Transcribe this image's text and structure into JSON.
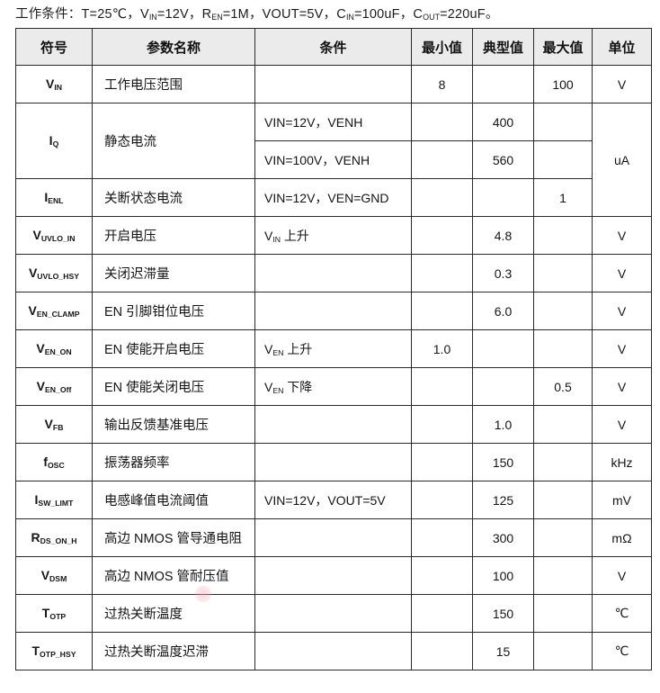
{
  "operating_conditions": {
    "segments": [
      [
        "工作条件：T=25℃，",
        0
      ],
      [
        "V",
        0
      ],
      [
        "IN",
        1
      ],
      [
        "=12V，",
        0
      ],
      [
        "R",
        0
      ],
      [
        "EN",
        1
      ],
      [
        "=1M，",
        0
      ],
      [
        "VOUT=5V，",
        0
      ],
      [
        "C",
        0
      ],
      [
        "IN",
        1
      ],
      [
        "=100uF，",
        0
      ],
      [
        "C",
        0
      ],
      [
        "OUT",
        1
      ],
      [
        "=220uF。",
        0
      ]
    ]
  },
  "table": {
    "headers": [
      "符号",
      "参数名称",
      "条件",
      "最小值",
      "典型值",
      "最大值",
      "单位"
    ],
    "rows": [
      {
        "cells": [
          {
            "seg": [
              [
                "V",
                0
              ],
              [
                "IN",
                1
              ]
            ]
          },
          {
            "t": "工作电压范围"
          },
          {
            "t": ""
          },
          {
            "t": "8"
          },
          {
            "t": ""
          },
          {
            "t": "100"
          },
          {
            "t": "V"
          }
        ]
      },
      {
        "cells": [
          {
            "seg": [
              [
                "I",
                0
              ],
              [
                "Q",
                1
              ]
            ],
            "rs": 2
          },
          {
            "t": "静态电流",
            "rs": 2
          },
          {
            "t": "VIN=12V，VENH"
          },
          {
            "t": ""
          },
          {
            "t": "400"
          },
          {
            "t": ""
          },
          {
            "t": "uA",
            "rs": 3
          }
        ]
      },
      {
        "cells": [
          {
            "t": "VIN=100V，VENH"
          },
          {
            "t": ""
          },
          {
            "t": "560"
          },
          {
            "t": ""
          }
        ]
      },
      {
        "cells": [
          {
            "seg": [
              [
                "I",
                0
              ],
              [
                "ENL",
                1
              ]
            ]
          },
          {
            "t": "关断状态电流"
          },
          {
            "t": "VIN=12V，VEN=GND"
          },
          {
            "t": ""
          },
          {
            "t": ""
          },
          {
            "t": "1"
          }
        ]
      },
      {
        "cells": [
          {
            "seg": [
              [
                "V",
                0
              ],
              [
                "UVLO_IN",
                1
              ]
            ]
          },
          {
            "t": "开启电压"
          },
          {
            "seg": [
              [
                "V",
                0
              ],
              [
                "IN",
                1
              ],
              [
                " 上升",
                0
              ]
            ]
          },
          {
            "t": ""
          },
          {
            "t": "4.8"
          },
          {
            "t": ""
          },
          {
            "t": "V"
          }
        ]
      },
      {
        "cells": [
          {
            "seg": [
              [
                "V",
                0
              ],
              [
                "UVLO_HSY",
                1
              ]
            ]
          },
          {
            "t": "关闭迟滞量"
          },
          {
            "t": ""
          },
          {
            "t": ""
          },
          {
            "t": "0.3"
          },
          {
            "t": ""
          },
          {
            "t": "V"
          }
        ]
      },
      {
        "cells": [
          {
            "seg": [
              [
                "V",
                0
              ],
              [
                "EN_CLAMP",
                1
              ]
            ]
          },
          {
            "t": "EN 引脚钳位电压"
          },
          {
            "t": ""
          },
          {
            "t": ""
          },
          {
            "t": "6.0"
          },
          {
            "t": ""
          },
          {
            "t": "V"
          }
        ]
      },
      {
        "cells": [
          {
            "seg": [
              [
                "V",
                0
              ],
              [
                "EN_ON",
                1
              ]
            ]
          },
          {
            "t": "EN 使能开启电压"
          },
          {
            "seg": [
              [
                "V",
                0
              ],
              [
                "EN",
                1
              ],
              [
                " 上升",
                0
              ]
            ]
          },
          {
            "t": "1.0"
          },
          {
            "t": ""
          },
          {
            "t": ""
          },
          {
            "t": "V"
          }
        ]
      },
      {
        "cells": [
          {
            "seg": [
              [
                "V",
                0
              ],
              [
                "EN_Off",
                1
              ]
            ]
          },
          {
            "t": "EN 使能关闭电压"
          },
          {
            "seg": [
              [
                "V",
                0
              ],
              [
                "EN",
                1
              ],
              [
                " 下降",
                0
              ]
            ]
          },
          {
            "t": ""
          },
          {
            "t": ""
          },
          {
            "t": "0.5"
          },
          {
            "t": "V"
          }
        ]
      },
      {
        "cells": [
          {
            "seg": [
              [
                "V",
                0
              ],
              [
                "FB",
                1
              ]
            ]
          },
          {
            "t": "输出反馈基准电压"
          },
          {
            "t": ""
          },
          {
            "t": ""
          },
          {
            "t": "1.0"
          },
          {
            "t": ""
          },
          {
            "t": "V"
          }
        ]
      },
      {
        "cells": [
          {
            "seg": [
              [
                "f",
                0
              ],
              [
                "OSC",
                1
              ]
            ]
          },
          {
            "t": "振荡器频率"
          },
          {
            "t": ""
          },
          {
            "t": ""
          },
          {
            "t": "150"
          },
          {
            "t": ""
          },
          {
            "t": "kHz"
          }
        ]
      },
      {
        "cells": [
          {
            "seg": [
              [
                "I",
                0
              ],
              [
                "SW_LIMT",
                1
              ]
            ]
          },
          {
            "t": "电感峰值电流阈值"
          },
          {
            "t": "VIN=12V，VOUT=5V"
          },
          {
            "t": ""
          },
          {
            "t": "125"
          },
          {
            "t": ""
          },
          {
            "t": "mV"
          }
        ]
      },
      {
        "cells": [
          {
            "seg": [
              [
                "R",
                0
              ],
              [
                "DS_ON_H",
                1
              ]
            ]
          },
          {
            "t": "高边 NMOS 管导通电阻"
          },
          {
            "t": ""
          },
          {
            "t": ""
          },
          {
            "t": "300"
          },
          {
            "t": ""
          },
          {
            "t": "mΩ"
          }
        ]
      },
      {
        "cells": [
          {
            "seg": [
              [
                "V",
                0
              ],
              [
                "DSM",
                1
              ]
            ]
          },
          {
            "t": "高边 NMOS 管耐压值"
          },
          {
            "t": ""
          },
          {
            "t": ""
          },
          {
            "t": "100"
          },
          {
            "t": ""
          },
          {
            "t": "V"
          }
        ]
      },
      {
        "cells": [
          {
            "seg": [
              [
                "T",
                0
              ],
              [
                "OTP",
                1
              ]
            ]
          },
          {
            "t": "过热关断温度"
          },
          {
            "t": ""
          },
          {
            "t": ""
          },
          {
            "t": "150"
          },
          {
            "t": ""
          },
          {
            "t": "℃"
          }
        ]
      },
      {
        "cells": [
          {
            "seg": [
              [
                "T",
                0
              ],
              [
                "OTP_HSY",
                1
              ]
            ]
          },
          {
            "t": "过热关断温度迟滞"
          },
          {
            "t": ""
          },
          {
            "t": ""
          },
          {
            "t": "15"
          },
          {
            "t": ""
          },
          {
            "t": "℃"
          }
        ]
      }
    ]
  },
  "colors": {
    "header_bg": "#ebebeb",
    "border": "#2a2a2a",
    "text": "#1c1c1c",
    "artifact_pink": "#f2a6b2"
  }
}
